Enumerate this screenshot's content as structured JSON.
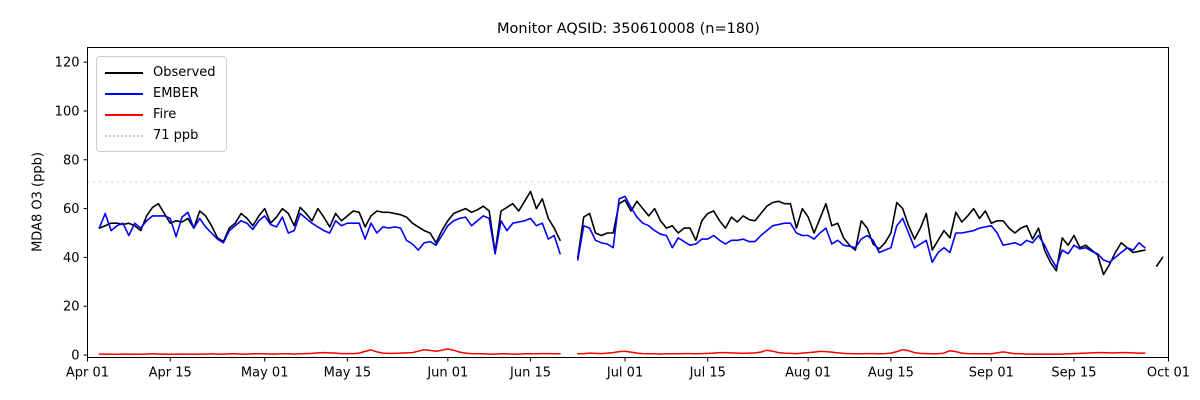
{
  "chart_data": {
    "type": "line",
    "title": "Monitor AQSID: 350610008 (n=180)",
    "ylabel": "MDA8 O3 (ppb)",
    "ylim": [
      -1,
      126
    ],
    "yticks": [
      0,
      20,
      40,
      60,
      80,
      100,
      120
    ],
    "x_axis": {
      "tick_labels": [
        "Apr 01",
        "Apr 15",
        "May 01",
        "May 15",
        "Jun 01",
        "Jun 15",
        "Jul 01",
        "Jul 15",
        "Aug 01",
        "Aug 15",
        "Sep 01",
        "Sep 15",
        "Oct 01"
      ],
      "tick_day_offsets": [
        0,
        14,
        30,
        44,
        61,
        75,
        91,
        105,
        122,
        136,
        153,
        167,
        183
      ],
      "day_offset_origin": "Apr 01",
      "total_days": 183
    },
    "grid": false,
    "legend_position": "upper-left",
    "threshold": {
      "label": "71 ppb",
      "value": 71,
      "color": "#d3d3d3",
      "style": "dotted"
    },
    "legend": [
      {
        "label": "Observed",
        "color": "#000000",
        "style": "solid"
      },
      {
        "label": "EMBER",
        "color": "#0000ff",
        "style": "solid"
      },
      {
        "label": "Fire",
        "color": "#ff0000",
        "style": "solid"
      },
      {
        "label": "71 ppb",
        "color": "#d3d3d3",
        "style": "dotted"
      }
    ],
    "series": [
      {
        "name": "Observed",
        "color": "#000000",
        "width": 1.6,
        "start_day_offset": 2,
        "values": [
          52,
          53,
          54,
          54,
          53.5,
          54,
          53,
          51,
          57,
          60.5,
          62,
          58,
          54,
          55,
          54.5,
          56,
          52,
          59,
          57,
          53,
          48,
          46.5,
          52,
          54,
          58,
          56,
          53,
          57,
          60,
          54,
          56.5,
          60,
          58,
          53,
          60.5,
          58,
          55,
          60,
          56.5,
          52.5,
          58,
          55,
          57,
          59,
          58.5,
          52.5,
          57,
          59,
          58.5,
          58.5,
          58,
          57.5,
          56.5,
          54,
          52.5,
          51,
          50,
          46,
          51,
          55,
          58,
          59,
          60,
          58.5,
          59.5,
          61,
          59,
          42,
          59,
          60.5,
          62,
          59,
          63,
          67,
          60,
          64,
          56,
          52,
          47,
          null,
          null,
          40,
          56.5,
          58,
          50,
          49,
          50,
          50,
          62,
          63.5,
          59,
          63,
          60,
          57,
          60,
          55,
          52,
          53,
          50,
          52,
          52,
          47,
          55,
          58,
          59,
          55,
          52,
          56.5,
          54.5,
          57,
          55.5,
          55,
          58,
          61,
          62.5,
          63,
          62,
          62,
          52,
          60,
          56.5,
          50,
          56,
          62,
          53,
          54,
          48,
          45,
          43,
          55,
          52,
          45.5,
          43.5,
          46,
          50,
          62.5,
          60,
          53,
          47.5,
          52,
          58,
          43,
          47,
          51,
          48,
          58.5,
          54.5,
          57,
          60,
          56,
          59,
          54,
          55,
          55,
          52,
          50,
          52,
          53,
          47.5,
          52,
          43,
          38,
          34.5,
          48,
          45,
          49,
          44,
          45,
          43,
          41,
          33,
          37,
          42,
          46,
          44,
          42,
          42.5,
          43,
          null,
          36.5,
          40
        ]
      },
      {
        "name": "EMBER",
        "color": "#0000ff",
        "width": 1.6,
        "start_day_offset": 2,
        "values": [
          52,
          58,
          51,
          53,
          54,
          49,
          54,
          52,
          55,
          57,
          57,
          57,
          56,
          48.5,
          56.5,
          58.5,
          52,
          56,
          52.5,
          50,
          47.5,
          46,
          51,
          53,
          55,
          54,
          51.5,
          55,
          57,
          53.5,
          52.5,
          56.5,
          50,
          51,
          58,
          56,
          54,
          52.5,
          51,
          50,
          55,
          53,
          54,
          54,
          54,
          47.5,
          54,
          50,
          52.5,
          52,
          52.5,
          52,
          47,
          45.5,
          43,
          46,
          46.5,
          45,
          49,
          53,
          55,
          56,
          56.5,
          53,
          55,
          57,
          56,
          41.5,
          55,
          51,
          54,
          54.5,
          55,
          56,
          53,
          54,
          47.5,
          49,
          41.5,
          null,
          null,
          39,
          53,
          52,
          47,
          46,
          45.5,
          44,
          64,
          65,
          60.5,
          56.5,
          54,
          53,
          51,
          49.5,
          49,
          44,
          48,
          46.5,
          45,
          45.5,
          47.5,
          47.5,
          49,
          47,
          45.5,
          47,
          47,
          47.5,
          46.5,
          46.5,
          49,
          51,
          53,
          53.5,
          54,
          54,
          50,
          49,
          49,
          47.5,
          50,
          52,
          45.5,
          47,
          45,
          44.5,
          44,
          47.5,
          49,
          47,
          42,
          43,
          44,
          53,
          56,
          50,
          44,
          45.5,
          47,
          38,
          42,
          44,
          42,
          50,
          50,
          50.5,
          51,
          52,
          52.5,
          53,
          50,
          45,
          45.5,
          46,
          45,
          47,
          46,
          49,
          45,
          40,
          36,
          43,
          41.5,
          45,
          43.5,
          44,
          42.5,
          41.5,
          39,
          38,
          40,
          42,
          44,
          43,
          46,
          44,
          null,
          null,
          null
        ]
      },
      {
        "name": "Fire",
        "color": "#ff0000",
        "width": 1.5,
        "start_day_offset": 2,
        "values": [
          0.4,
          0.4,
          0.3,
          0.3,
          0.4,
          0.4,
          0.3,
          0.3,
          0.4,
          0.5,
          0.4,
          0.4,
          0.3,
          0.4,
          0.4,
          0.4,
          0.3,
          0.4,
          0.4,
          0.5,
          0.4,
          0.4,
          0.5,
          0.5,
          0.4,
          0.4,
          0.5,
          0.5,
          0.5,
          0.4,
          0.4,
          0.5,
          0.5,
          0.4,
          0.5,
          0.6,
          0.7,
          0.9,
          1.0,
          0.9,
          0.8,
          0.6,
          0.6,
          0.6,
          0.8,
          1.5,
          2.1,
          1.3,
          0.8,
          0.7,
          0.7,
          0.8,
          0.9,
          1.0,
          1.6,
          2.2,
          1.9,
          1.6,
          2.0,
          2.5,
          2.0,
          1.2,
          0.8,
          0.6,
          0.5,
          0.5,
          0.4,
          0.4,
          0.5,
          0.5,
          0.4,
          0.4,
          0.5,
          0.5,
          0.5,
          0.6,
          0.6,
          0.5,
          0.5,
          null,
          null,
          0.5,
          0.6,
          0.8,
          0.7,
          0.6,
          0.8,
          1.0,
          1.4,
          1.6,
          1.2,
          0.8,
          0.6,
          0.5,
          0.5,
          0.4,
          0.5,
          0.5,
          0.5,
          0.6,
          0.6,
          0.5,
          0.6,
          0.7,
          0.8,
          1.0,
          1.0,
          0.9,
          0.8,
          0.7,
          0.8,
          0.9,
          1.2,
          2.0,
          1.6,
          1.0,
          0.8,
          0.7,
          0.6,
          0.8,
          1.0,
          1.2,
          1.5,
          1.4,
          1.2,
          0.9,
          0.7,
          0.6,
          0.5,
          0.5,
          0.6,
          0.6,
          0.5,
          0.6,
          0.8,
          1.4,
          2.2,
          1.8,
          1.0,
          0.7,
          0.6,
          0.5,
          0.5,
          0.8,
          1.8,
          1.4,
          0.8,
          0.6,
          0.5,
          0.5,
          0.5,
          0.5,
          0.9,
          1.3,
          0.9,
          0.6,
          0.5,
          0.4,
          0.4,
          0.4,
          0.4,
          0.4,
          0.4,
          0.4,
          0.5,
          0.6,
          0.7,
          0.8,
          0.9,
          1.0,
          1.0,
          0.9,
          0.9,
          1.0,
          1.0,
          0.9,
          0.8,
          0.8,
          null,
          null,
          null
        ]
      }
    ]
  }
}
